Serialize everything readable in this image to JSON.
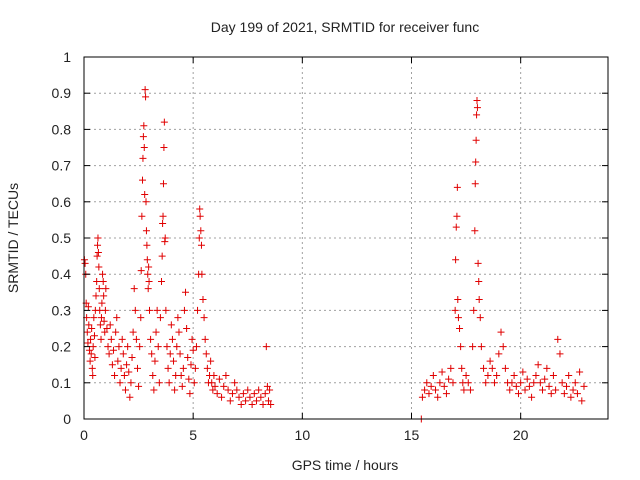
{
  "chart_data": {
    "type": "scatter",
    "title": "Day 199 of 2021, SRMTID for receiver func",
    "xlabel": "GPS time / hours",
    "ylabel": "SRMTID / TECUs",
    "xlim": [
      0,
      24
    ],
    "ylim": [
      0,
      1
    ],
    "xticks": [
      0,
      5,
      10,
      15,
      20
    ],
    "yticks": [
      0,
      0.1,
      0.2,
      0.3,
      0.4,
      0.5,
      0.6,
      0.7,
      0.8,
      0.9,
      1
    ],
    "grid": true,
    "marker": "+",
    "color": "#e00000",
    "series": [
      {
        "name": "SRMTID",
        "points": [
          [
            0.02,
            0.44
          ],
          [
            0.05,
            0.43
          ],
          [
            0.08,
            0.4
          ],
          [
            0.1,
            0.32
          ],
          [
            0.12,
            0.28
          ],
          [
            0.15,
            0.24
          ],
          [
            0.18,
            0.21
          ],
          [
            0.2,
            0.31
          ],
          [
            0.22,
            0.26
          ],
          [
            0.25,
            0.19
          ],
          [
            0.28,
            0.16
          ],
          [
            0.3,
            0.22
          ],
          [
            0.33,
            0.18
          ],
          [
            0.35,
            0.25
          ],
          [
            0.38,
            0.14
          ],
          [
            0.4,
            0.12
          ],
          [
            0.42,
            0.2
          ],
          [
            0.45,
            0.28
          ],
          [
            0.48,
            0.23
          ],
          [
            0.5,
            0.17
          ],
          [
            0.52,
            0.3
          ],
          [
            0.55,
            0.34
          ],
          [
            0.58,
            0.38
          ],
          [
            0.6,
            0.45
          ],
          [
            0.62,
            0.48
          ],
          [
            0.64,
            0.5
          ],
          [
            0.66,
            0.46
          ],
          [
            0.68,
            0.42
          ],
          [
            0.7,
            0.36
          ],
          [
            0.72,
            0.3
          ],
          [
            0.75,
            0.26
          ],
          [
            0.78,
            0.22
          ],
          [
            0.8,
            0.28
          ],
          [
            0.82,
            0.32
          ],
          [
            0.85,
            0.4
          ],
          [
            0.88,
            0.38
          ],
          [
            0.9,
            0.34
          ],
          [
            0.92,
            0.27
          ],
          [
            0.95,
            0.24
          ],
          [
            0.98,
            0.3
          ],
          [
            1.0,
            0.36
          ],
          [
            1.05,
            0.25
          ],
          [
            1.1,
            0.2
          ],
          [
            1.15,
            0.18
          ],
          [
            1.2,
            0.26
          ],
          [
            1.25,
            0.22
          ],
          [
            1.3,
            0.15
          ],
          [
            1.35,
            0.19
          ],
          [
            1.4,
            0.12
          ],
          [
            1.45,
            0.24
          ],
          [
            1.5,
            0.28
          ],
          [
            1.55,
            0.16
          ],
          [
            1.6,
            0.2
          ],
          [
            1.65,
            0.1
          ],
          [
            1.7,
            0.14
          ],
          [
            1.75,
            0.22
          ],
          [
            1.8,
            0.18
          ],
          [
            1.85,
            0.12
          ],
          [
            1.9,
            0.08
          ],
          [
            1.95,
            0.15
          ],
          [
            2.0,
            0.2
          ],
          [
            2.05,
            0.13
          ],
          [
            2.1,
            0.06
          ],
          [
            2.15,
            0.1
          ],
          [
            2.2,
            0.17
          ],
          [
            2.25,
            0.24
          ],
          [
            2.3,
            0.36
          ],
          [
            2.35,
            0.3
          ],
          [
            2.4,
            0.22
          ],
          [
            2.45,
            0.14
          ],
          [
            2.5,
            0.09
          ],
          [
            2.55,
            0.2
          ],
          [
            2.6,
            0.28
          ],
          [
            2.62,
            0.41
          ],
          [
            2.65,
            0.56
          ],
          [
            2.68,
            0.66
          ],
          [
            2.7,
            0.72
          ],
          [
            2.72,
            0.78
          ],
          [
            2.74,
            0.81
          ],
          [
            2.76,
            0.75
          ],
          [
            2.78,
            0.62
          ],
          [
            2.8,
            0.91
          ],
          [
            2.82,
            0.89
          ],
          [
            2.84,
            0.6
          ],
          [
            2.86,
            0.52
          ],
          [
            2.88,
            0.48
          ],
          [
            2.9,
            0.44
          ],
          [
            2.92,
            0.4
          ],
          [
            2.94,
            0.36
          ],
          [
            2.96,
            0.42
          ],
          [
            2.98,
            0.38
          ],
          [
            3.0,
            0.3
          ],
          [
            3.05,
            0.22
          ],
          [
            3.1,
            0.18
          ],
          [
            3.15,
            0.12
          ],
          [
            3.2,
            0.08
          ],
          [
            3.25,
            0.16
          ],
          [
            3.3,
            0.24
          ],
          [
            3.35,
            0.3
          ],
          [
            3.4,
            0.2
          ],
          [
            3.45,
            0.1
          ],
          [
            3.5,
            0.28
          ],
          [
            3.55,
            0.38
          ],
          [
            3.58,
            0.45
          ],
          [
            3.6,
            0.54
          ],
          [
            3.62,
            0.56
          ],
          [
            3.64,
            0.65
          ],
          [
            3.66,
            0.75
          ],
          [
            3.68,
            0.82
          ],
          [
            3.7,
            0.49
          ],
          [
            3.72,
            0.5
          ],
          [
            3.75,
            0.3
          ],
          [
            3.8,
            0.2
          ],
          [
            3.85,
            0.14
          ],
          [
            3.9,
            0.1
          ],
          [
            3.95,
            0.18
          ],
          [
            4.0,
            0.26
          ],
          [
            4.05,
            0.22
          ],
          [
            4.1,
            0.16
          ],
          [
            4.15,
            0.08
          ],
          [
            4.2,
            0.12
          ],
          [
            4.25,
            0.2
          ],
          [
            4.3,
            0.28
          ],
          [
            4.35,
            0.24
          ],
          [
            4.4,
            0.18
          ],
          [
            4.45,
            0.12
          ],
          [
            4.5,
            0.09
          ],
          [
            4.55,
            0.14
          ],
          [
            4.6,
            0.3
          ],
          [
            4.65,
            0.35
          ],
          [
            4.7,
            0.25
          ],
          [
            4.75,
            0.17
          ],
          [
            4.8,
            0.11
          ],
          [
            4.85,
            0.07
          ],
          [
            4.9,
            0.15
          ],
          [
            4.95,
            0.22
          ],
          [
            5.0,
            0.19
          ],
          [
            5.05,
            0.1
          ],
          [
            5.1,
            0.14
          ],
          [
            5.15,
            0.2
          ],
          [
            5.2,
            0.3
          ],
          [
            5.25,
            0.4
          ],
          [
            5.28,
            0.5
          ],
          [
            5.3,
            0.58
          ],
          [
            5.32,
            0.56
          ],
          [
            5.35,
            0.52
          ],
          [
            5.38,
            0.48
          ],
          [
            5.4,
            0.4
          ],
          [
            5.45,
            0.33
          ],
          [
            5.5,
            0.28
          ],
          [
            5.55,
            0.22
          ],
          [
            5.6,
            0.18
          ],
          [
            5.65,
            0.14
          ],
          [
            5.7,
            0.1
          ],
          [
            5.75,
            0.12
          ],
          [
            5.8,
            0.16
          ],
          [
            5.85,
            0.1
          ],
          [
            5.9,
            0.08
          ],
          [
            5.95,
            0.12
          ],
          [
            6.0,
            0.09
          ],
          [
            6.1,
            0.07
          ],
          [
            6.2,
            0.11
          ],
          [
            6.3,
            0.06
          ],
          [
            6.4,
            0.09
          ],
          [
            6.5,
            0.12
          ],
          [
            6.6,
            0.08
          ],
          [
            6.7,
            0.05
          ],
          [
            6.8,
            0.07
          ],
          [
            6.9,
            0.1
          ],
          [
            7.0,
            0.08
          ],
          [
            7.1,
            0.06
          ],
          [
            7.2,
            0.04
          ],
          [
            7.3,
            0.07
          ],
          [
            7.4,
            0.05
          ],
          [
            7.5,
            0.08
          ],
          [
            7.6,
            0.06
          ],
          [
            7.7,
            0.04
          ],
          [
            7.8,
            0.07
          ],
          [
            7.9,
            0.05
          ],
          [
            8.0,
            0.08
          ],
          [
            8.1,
            0.06
          ],
          [
            8.2,
            0.04
          ],
          [
            8.3,
            0.07
          ],
          [
            8.35,
            0.2
          ],
          [
            8.4,
            0.09
          ],
          [
            8.45,
            0.05
          ],
          [
            8.5,
            0.08
          ],
          [
            8.55,
            0.04
          ],
          [
            15.45,
            0.0
          ],
          [
            15.5,
            0.06
          ],
          [
            15.6,
            0.08
          ],
          [
            15.7,
            0.1
          ],
          [
            15.8,
            0.07
          ],
          [
            15.9,
            0.09
          ],
          [
            16.0,
            0.12
          ],
          [
            16.1,
            0.08
          ],
          [
            16.2,
            0.06
          ],
          [
            16.3,
            0.1
          ],
          [
            16.4,
            0.13
          ],
          [
            16.5,
            0.09
          ],
          [
            16.6,
            0.07
          ],
          [
            16.7,
            0.11
          ],
          [
            16.8,
            0.14
          ],
          [
            16.9,
            0.1
          ],
          [
            17.0,
            0.3
          ],
          [
            17.02,
            0.44
          ],
          [
            17.05,
            0.53
          ],
          [
            17.08,
            0.56
          ],
          [
            17.1,
            0.64
          ],
          [
            17.12,
            0.33
          ],
          [
            17.15,
            0.28
          ],
          [
            17.2,
            0.25
          ],
          [
            17.25,
            0.2
          ],
          [
            17.3,
            0.14
          ],
          [
            17.35,
            0.1
          ],
          [
            17.4,
            0.08
          ],
          [
            17.5,
            0.12
          ],
          [
            17.6,
            0.1
          ],
          [
            17.7,
            0.08
          ],
          [
            17.8,
            0.2
          ],
          [
            17.85,
            0.3
          ],
          [
            17.9,
            0.52
          ],
          [
            17.92,
            0.65
          ],
          [
            17.94,
            0.71
          ],
          [
            17.96,
            0.77
          ],
          [
            17.98,
            0.84
          ],
          [
            18.0,
            0.88
          ],
          [
            18.02,
            0.86
          ],
          [
            18.05,
            0.43
          ],
          [
            18.08,
            0.38
          ],
          [
            18.1,
            0.33
          ],
          [
            18.15,
            0.28
          ],
          [
            18.2,
            0.2
          ],
          [
            18.3,
            0.14
          ],
          [
            18.4,
            0.1
          ],
          [
            18.5,
            0.12
          ],
          [
            18.6,
            0.16
          ],
          [
            18.7,
            0.14
          ],
          [
            18.8,
            0.1
          ],
          [
            18.9,
            0.12
          ],
          [
            19.0,
            0.18
          ],
          [
            19.1,
            0.24
          ],
          [
            19.2,
            0.2
          ],
          [
            19.3,
            0.14
          ],
          [
            19.4,
            0.1
          ],
          [
            19.5,
            0.08
          ],
          [
            19.6,
            0.1
          ],
          [
            19.7,
            0.12
          ],
          [
            19.8,
            0.09
          ],
          [
            19.9,
            0.07
          ],
          [
            20.0,
            0.1
          ],
          [
            20.1,
            0.13
          ],
          [
            20.2,
            0.08
          ],
          [
            20.3,
            0.11
          ],
          [
            20.4,
            0.09
          ],
          [
            20.5,
            0.06
          ],
          [
            20.6,
            0.1
          ],
          [
            20.7,
            0.12
          ],
          [
            20.8,
            0.15
          ],
          [
            20.9,
            0.1
          ],
          [
            21.0,
            0.08
          ],
          [
            21.1,
            0.11
          ],
          [
            21.2,
            0.14
          ],
          [
            21.3,
            0.09
          ],
          [
            21.4,
            0.07
          ],
          [
            21.5,
            0.12
          ],
          [
            21.6,
            0.08
          ],
          [
            21.7,
            0.22
          ],
          [
            21.8,
            0.18
          ],
          [
            21.9,
            0.1
          ],
          [
            22.0,
            0.07
          ],
          [
            22.1,
            0.09
          ],
          [
            22.2,
            0.12
          ],
          [
            22.3,
            0.06
          ],
          [
            22.4,
            0.08
          ],
          [
            22.5,
            0.1
          ],
          [
            22.6,
            0.07
          ],
          [
            22.7,
            0.13
          ],
          [
            22.8,
            0.05
          ],
          [
            22.9,
            0.09
          ]
        ]
      }
    ]
  }
}
